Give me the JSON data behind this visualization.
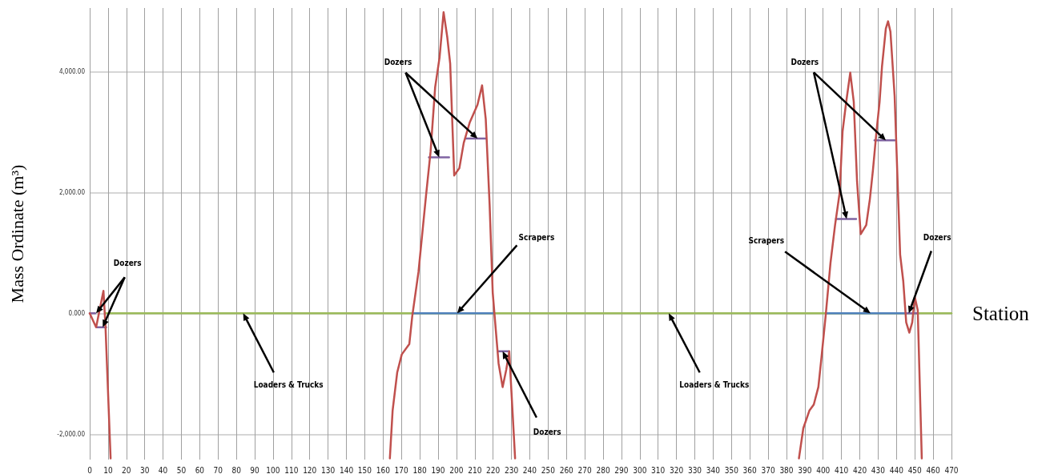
{
  "chart_data": {
    "type": "line",
    "xlabel": "Station",
    "ylabel": "Mass Ordinate (m³)",
    "xlim": [
      0,
      470
    ],
    "xticks": [
      0,
      10,
      20,
      30,
      40,
      50,
      60,
      70,
      80,
      90,
      100,
      110,
      120,
      130,
      140,
      150,
      160,
      170,
      180,
      190,
      200,
      210,
      220,
      230,
      240,
      250,
      260,
      270,
      280,
      290,
      300,
      310,
      320,
      330,
      340,
      350,
      360,
      370,
      380,
      390,
      400,
      410,
      420,
      430,
      440,
      450,
      460,
      470
    ],
    "ylim": [
      -2420,
      5050
    ],
    "yticks": [
      {
        "value": -2000,
        "label": "-2,000.00"
      },
      {
        "value": 0,
        "label": "0.000"
      },
      {
        "value": 2000,
        "label": "2,000.00"
      },
      {
        "value": 4000,
        "label": "4,000.00"
      }
    ],
    "grid": true,
    "marker": "none",
    "series": [
      {
        "color": "#9bbb59",
        "x": [
          9,
          470
        ],
        "values": [
          0,
          0
        ]
      },
      {
        "color": "#4f81bd",
        "x": [
          176,
          220,
          300,
          402,
          445
        ],
        "values": [
          0,
          0,
          null,
          0,
          0
        ]
      },
      {
        "color": "#8064a2",
        "x": [
          0,
          3,
          3.5,
          4,
          9,
          100,
          185,
          196,
          200,
          205,
          216,
          219,
          222.6,
          228.5,
          300,
          407,
          418,
          420,
          428,
          439,
          442,
          445,
          451
        ],
        "values": [
          0,
          0,
          null,
          -230,
          -230,
          null,
          2580,
          2580,
          null,
          2890,
          2890,
          null,
          -630,
          -630,
          null,
          1560,
          1560,
          null,
          2860,
          2860,
          null,
          0,
          0
        ]
      },
      {
        "color": "#c0504d",
        "x": [
          0,
          3.5,
          7.5,
          8.6,
          11.4,
          100,
          163.7,
          165.2,
          167.7,
          170.2,
          174.3,
          175.9,
          179.3,
          183.4,
          185.9,
          188.4,
          190.8,
          193,
          195,
          196.6,
          198.8,
          201.6,
          204,
          207.3,
          211.5,
          214,
          216,
          218.1,
          219.8,
          221.4,
          223,
          225.2,
          227.2,
          228.8,
          232,
          300,
          386.8,
          389.2,
          392.5,
          394.9,
          397.4,
          399.1,
          401.5,
          404,
          406.5,
          409,
          410.6,
          412.6,
          414.8,
          416.7,
          418.5,
          420.5,
          423.5,
          425.5,
          427.2,
          429.1,
          430.8,
          432.1,
          434.2,
          435.4,
          436.7,
          439,
          442,
          443.7,
          445.3,
          447,
          448.6,
          450,
          451.6,
          453.8
        ],
        "values": [
          0,
          -230,
          370,
          -210,
          -2400,
          null,
          -2400,
          -1610,
          -980,
          -680,
          -510,
          -50,
          680,
          1940,
          2670,
          3740,
          4230,
          4980,
          4570,
          4130,
          2280,
          2400,
          2820,
          3160,
          3450,
          3770,
          3210,
          1800,
          340,
          -250,
          -830,
          -1220,
          -930,
          -630,
          -2400,
          null,
          -2400,
          -1900,
          -1610,
          -1510,
          -1220,
          -730,
          0,
          830,
          1460,
          1990,
          3010,
          3500,
          3980,
          3500,
          2180,
          1310,
          1460,
          1890,
          2380,
          3010,
          3500,
          4080,
          4710,
          4830,
          4660,
          3590,
          970,
          530,
          -150,
          -320,
          -150,
          270,
          50,
          -2400
        ]
      }
    ],
    "annotations": [
      {
        "text": "Dozers",
        "x": 3.5,
        "y": 0
      },
      {
        "text": "Dozers",
        "x": 190.6,
        "y": 2580
      },
      {
        "text": "Scrapers",
        "x": 200.4,
        "y": 0
      },
      {
        "text": "Dozers",
        "x": 225.2,
        "y": -630
      },
      {
        "text": "Loaders & Trucks",
        "x": 83.7,
        "y": 0
      },
      {
        "text": "Loaders & Trucks",
        "x": 315.8,
        "y": 0
      },
      {
        "text": "Dozers",
        "x": 412.8,
        "y": 1560
      },
      {
        "text": "Scrapers",
        "x": 425.8,
        "y": 0
      },
      {
        "text": "Dozers",
        "x": 446.7,
        "y": 0
      }
    ]
  }
}
